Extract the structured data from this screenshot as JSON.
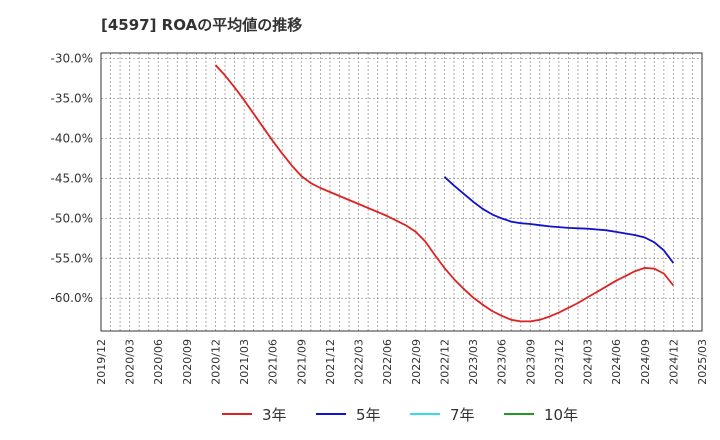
{
  "chart_data": {
    "type": "line",
    "title": "[4597]  ROAの平均値の推移",
    "xlabel": "",
    "ylabel": "",
    "ylim": [
      -64.1,
      -29.3
    ],
    "grid": true,
    "legend_position": "bottom",
    "x_ticks": [
      "2019/12",
      "2020/03",
      "2020/06",
      "2020/09",
      "2020/12",
      "2021/03",
      "2021/06",
      "2021/09",
      "2021/12",
      "2022/03",
      "2022/06",
      "2022/09",
      "2022/12",
      "2023/03",
      "2023/06",
      "2023/09",
      "2023/12",
      "2024/03",
      "2024/06",
      "2024/09",
      "2024/12",
      "2025/03"
    ],
    "y_ticks": [
      -30,
      -35,
      -40,
      -45,
      -50,
      -55,
      -60
    ],
    "y_tick_labels": [
      "-30.0%",
      "-35.0%",
      "-40.0%",
      "-45.0%",
      "-50.0%",
      "-55.0%",
      "-60.0%"
    ],
    "series": [
      {
        "name": "3年",
        "color": "#dd2222",
        "x": [
          "2020/12",
          "2021/01",
          "2021/02",
          "2021/03",
          "2021/04",
          "2021/05",
          "2021/06",
          "2021/07",
          "2021/08",
          "2021/09",
          "2021/10",
          "2021/11",
          "2021/12",
          "2022/01",
          "2022/02",
          "2022/03",
          "2022/04",
          "2022/05",
          "2022/06",
          "2022/07",
          "2022/08",
          "2022/09",
          "2022/10",
          "2022/11",
          "2022/12",
          "2023/01",
          "2023/02",
          "2023/03",
          "2023/04",
          "2023/05",
          "2023/06",
          "2023/07",
          "2023/08",
          "2023/09",
          "2023/10",
          "2023/11",
          "2023/12",
          "2024/01",
          "2024/02",
          "2024/03",
          "2024/04",
          "2024/05",
          "2024/06",
          "2024/07",
          "2024/08",
          "2024/09",
          "2024/10",
          "2024/11",
          "2024/12"
        ],
        "values": [
          -30.8,
          -32.1,
          -33.6,
          -35.2,
          -36.9,
          -38.6,
          -40.3,
          -41.9,
          -43.4,
          -44.7,
          -45.6,
          -46.2,
          -46.7,
          -47.2,
          -47.7,
          -48.2,
          -48.7,
          -49.2,
          -49.7,
          -50.3,
          -50.9,
          -51.7,
          -52.9,
          -54.6,
          -56.2,
          -57.6,
          -58.8,
          -59.9,
          -60.8,
          -61.6,
          -62.2,
          -62.7,
          -62.9,
          -62.9,
          -62.7,
          -62.3,
          -61.8,
          -61.2,
          -60.6,
          -59.9,
          -59.2,
          -58.5,
          -57.8,
          -57.2,
          -56.6,
          -56.2,
          -56.3,
          -56.9,
          -58.4
        ]
      },
      {
        "name": "5年",
        "color": "#1111cc",
        "x": [
          "2022/12",
          "2023/01",
          "2023/02",
          "2023/03",
          "2023/04",
          "2023/05",
          "2023/06",
          "2023/07",
          "2023/08",
          "2023/09",
          "2023/10",
          "2023/11",
          "2023/12",
          "2024/01",
          "2024/02",
          "2024/03",
          "2024/04",
          "2024/05",
          "2024/06",
          "2024/07",
          "2024/08",
          "2024/09",
          "2024/10",
          "2024/11",
          "2024/12"
        ],
        "values": [
          -44.8,
          -45.9,
          -46.9,
          -47.9,
          -48.8,
          -49.5,
          -50.0,
          -50.4,
          -50.6,
          -50.7,
          -50.85,
          -51.0,
          -51.1,
          -51.2,
          -51.25,
          -51.3,
          -51.4,
          -51.5,
          -51.7,
          -51.9,
          -52.1,
          -52.4,
          -53.0,
          -54.0,
          -55.6
        ]
      },
      {
        "name": "7年",
        "color": "#33ddee",
        "x": [],
        "values": []
      },
      {
        "name": "10年",
        "color": "#229922",
        "x": [],
        "values": []
      }
    ]
  }
}
